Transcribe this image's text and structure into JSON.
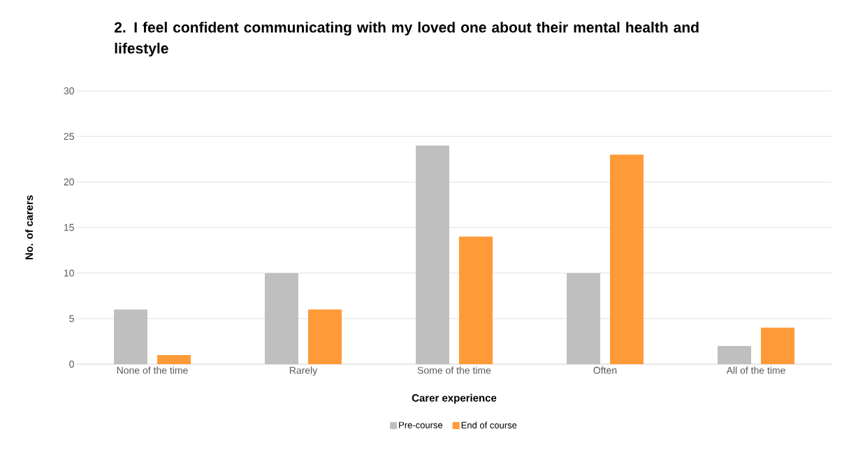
{
  "chart_data": {
    "type": "bar",
    "title": "2. I feel confident communicating with my loved one about their mental health and lifestyle",
    "xlabel": "Carer experience",
    "ylabel": "No. of carers",
    "categories": [
      "None of the time",
      "Rarely",
      "Some of the time",
      "Often",
      "All of the time"
    ],
    "series": [
      {
        "name": "Pre-course",
        "color": "#bfbfbf",
        "values": [
          6,
          10,
          24,
          10,
          2
        ]
      },
      {
        "name": "End of course",
        "color": "#ff9a38",
        "values": [
          1,
          6,
          14,
          23,
          4
        ]
      }
    ],
    "ylim": [
      0,
      30
    ],
    "yticks": [
      0,
      5,
      10,
      15,
      20,
      25,
      30
    ],
    "grid": "y",
    "legend": "bottom"
  }
}
